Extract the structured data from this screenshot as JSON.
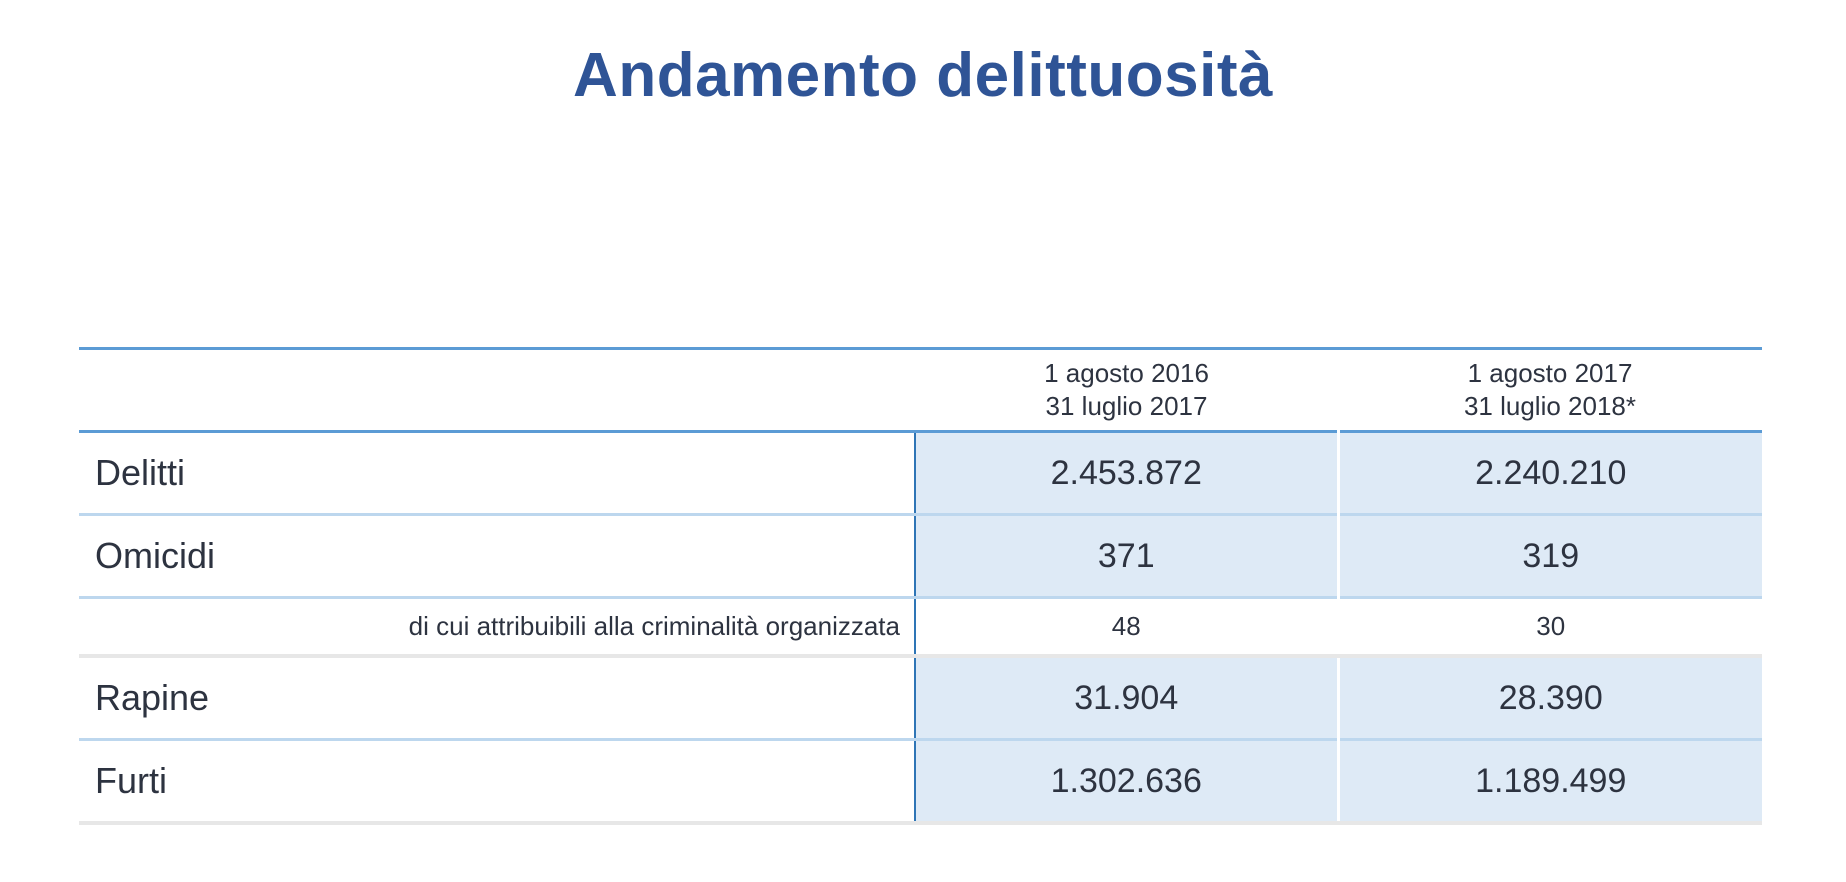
{
  "title": "Andamento delittuosità",
  "table": {
    "headers": [
      {
        "line1": "1 agosto 2016",
        "line2": "31 luglio 2017"
      },
      {
        "line1": "1 agosto 2017",
        "line2": "31 luglio 2018*"
      }
    ],
    "rows": [
      {
        "label": "Delitti",
        "v1": "2.453.872",
        "v2": "2.240.210"
      },
      {
        "label": "Omicidi",
        "v1": "371",
        "v2": "319"
      },
      {
        "label": "di cui attribuibili alla criminalità organizzata",
        "v1": "48",
        "v2": "30"
      },
      {
        "label": "Rapine",
        "v1": "31.904",
        "v2": "28.390"
      },
      {
        "label": "Furti",
        "v1": "1.302.636",
        "v2": "1.189.499"
      }
    ]
  }
}
